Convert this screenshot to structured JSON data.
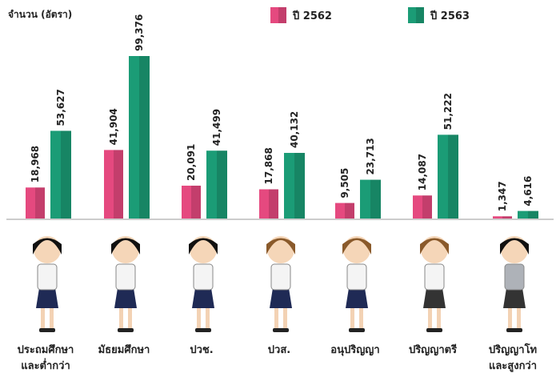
{
  "chart_data": {
    "type": "bar",
    "title": "จำนวน (อัตรา)",
    "categories": [
      "ประถมศึกษา\nและต่ำกว่า",
      "มัธยมศึกษา",
      "ปวช.",
      "ปวส.",
      "อนุปริญญา",
      "ปริญญาตรี",
      "ปริญญาโท\nและสูงกว่า"
    ],
    "series": [
      {
        "name": "ปี 2562",
        "color": "#e5497f",
        "values": [
          18968,
          41904,
          20091,
          17868,
          9505,
          14087,
          1347
        ],
        "value_labels": [
          "18,968",
          "41,904",
          "20,091",
          "17,868",
          "9,505",
          "14,087",
          "1,347"
        ]
      },
      {
        "name": "ปี 2563",
        "color": "#1b9c76",
        "values": [
          53627,
          99376,
          41499,
          40132,
          23713,
          51222,
          4616
        ],
        "value_labels": [
          "53,627",
          "99,376",
          "41,499",
          "40,132",
          "23,713",
          "51,222",
          "4,616"
        ]
      }
    ]
  }
}
